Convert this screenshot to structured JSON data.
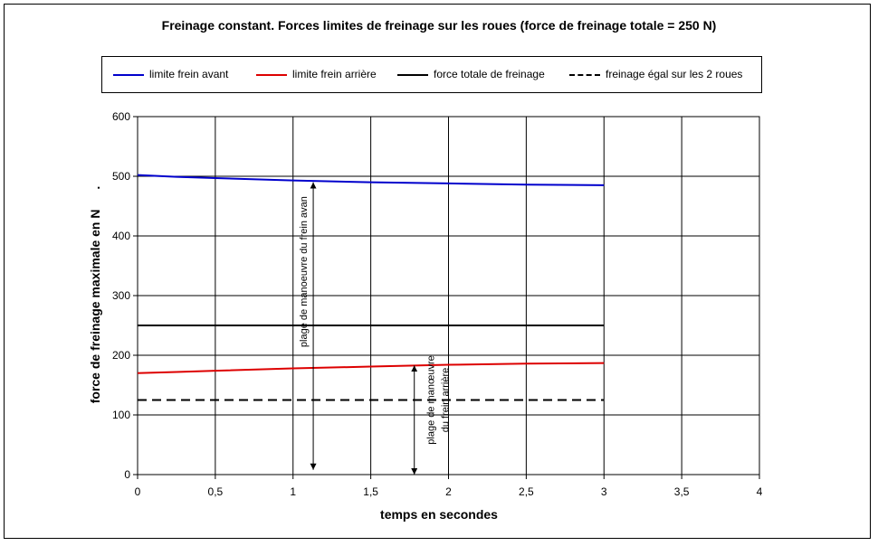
{
  "chart_data": {
    "type": "line",
    "title": "Freinage constant. Forces limites de freinage sur les roues (force de freinage totale = 250 N)",
    "xlabel": "temps en secondes",
    "ylabel": "force de freinage maximale en N",
    "ylabel_suffix": ".",
    "xlim": [
      0,
      4
    ],
    "ylim": [
      0,
      600
    ],
    "x_ticks": [
      "0",
      "0,5",
      "1",
      "1,5",
      "2",
      "2,5",
      "3",
      "3,5",
      "4"
    ],
    "y_ticks": [
      "0",
      "100",
      "200",
      "300",
      "400",
      "500",
      "600"
    ],
    "grid": true,
    "legend_position": "top",
    "series": [
      {
        "name": "limite frein avant",
        "color": "#0000cc",
        "dash": "solid",
        "x": [
          0,
          0.25,
          0.5,
          1,
          1.5,
          2,
          2.5,
          3
        ],
        "y": [
          502,
          499,
          497,
          493,
          490,
          488,
          486,
          485
        ]
      },
      {
        "name": "limite frein arrière",
        "color": "#dd0000",
        "dash": "solid",
        "x": [
          0,
          0.25,
          0.5,
          1,
          1.5,
          2,
          2.5,
          3
        ],
        "y": [
          170,
          172,
          174,
          178,
          181,
          184,
          186,
          187
        ]
      },
      {
        "name": "force totale de freinage",
        "color": "#000000",
        "dash": "solid",
        "x": [
          0,
          3
        ],
        "y": [
          250,
          250
        ]
      },
      {
        "name": "freinage égal sur les 2 roues",
        "color": "#000000",
        "dash": "dashed",
        "x": [
          0,
          3
        ],
        "y": [
          125,
          125
        ]
      }
    ],
    "annotations": [
      {
        "lines": [
          "plage de manoeuvre du frein avan"
        ],
        "arrow_x": 1.13,
        "arrow_y": [
          8,
          490
        ]
      },
      {
        "lines": [
          "plage de manœuvre",
          "du frein arrière"
        ],
        "arrow_x": 1.78,
        "arrow_y": [
          0,
          183
        ]
      }
    ]
  }
}
